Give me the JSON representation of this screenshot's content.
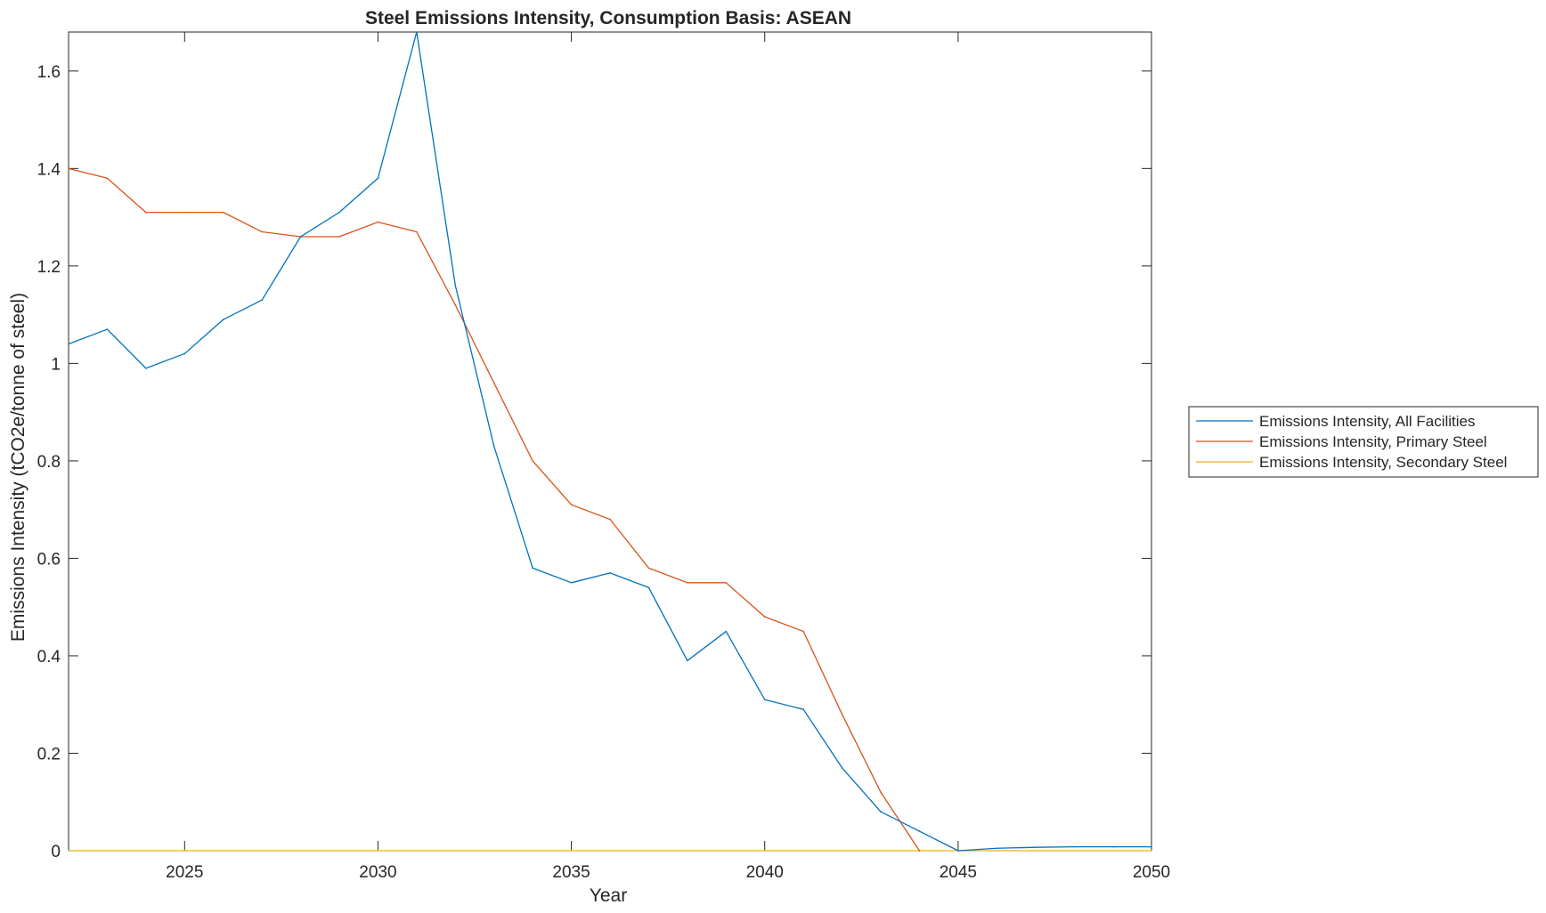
{
  "chart_data": {
    "type": "line",
    "title": "Steel Emissions Intensity, Consumption Basis: ASEAN",
    "xlabel": "Year",
    "ylabel": "Emissions Intensity (tCO2e/tonne of steel)",
    "xlim": [
      2022,
      2050
    ],
    "ylim": [
      0,
      1.68
    ],
    "xticks": [
      2025,
      2030,
      2035,
      2040,
      2045,
      2050
    ],
    "yticks": [
      0,
      0.2,
      0.4,
      0.6,
      0.8,
      1,
      1.2,
      1.4,
      1.6
    ],
    "ytick_labels": [
      "0",
      "0.2",
      "0.4",
      "0.6",
      "0.8",
      "1",
      "1.2",
      "1.4",
      "1.6"
    ],
    "grid": false,
    "legend_position": "outside-right",
    "x": [
      2022,
      2023,
      2024,
      2025,
      2026,
      2027,
      2028,
      2029,
      2030,
      2031,
      2032,
      2033,
      2034,
      2035,
      2036,
      2037,
      2038,
      2039,
      2040,
      2041,
      2042,
      2043,
      2044,
      2045,
      2046,
      2047,
      2048,
      2049,
      2050
    ],
    "series": [
      {
        "name": "Emissions Intensity, All Facilities",
        "color": "#0072BD",
        "values": [
          1.04,
          1.07,
          0.99,
          1.02,
          1.09,
          1.13,
          1.26,
          1.31,
          1.38,
          1.68,
          1.16,
          0.83,
          0.58,
          0.55,
          0.57,
          0.54,
          0.39,
          0.45,
          0.31,
          0.29,
          0.17,
          0.08,
          0.04,
          0.0,
          0.005,
          0.007,
          0.008,
          0.008,
          0.008
        ]
      },
      {
        "name": "Emissions Intensity, Primary Steel",
        "color": "#D95319",
        "values": [
          1.4,
          1.38,
          1.31,
          1.31,
          1.31,
          1.27,
          1.26,
          1.26,
          1.29,
          1.27,
          1.12,
          0.96,
          0.8,
          0.71,
          0.68,
          0.58,
          0.55,
          0.55,
          0.48,
          0.45,
          0.28,
          0.12,
          0.0,
          null,
          null,
          null,
          null,
          null,
          null
        ]
      },
      {
        "name": "Emissions Intensity, Secondary Steel",
        "color": "#EDB120",
        "values": [
          0,
          0,
          0,
          0,
          0,
          0,
          0,
          0,
          0,
          0,
          0,
          0,
          0,
          0,
          0,
          0,
          0,
          0,
          0,
          0,
          0,
          0,
          0,
          0,
          0,
          0,
          0,
          0,
          0
        ]
      }
    ]
  }
}
